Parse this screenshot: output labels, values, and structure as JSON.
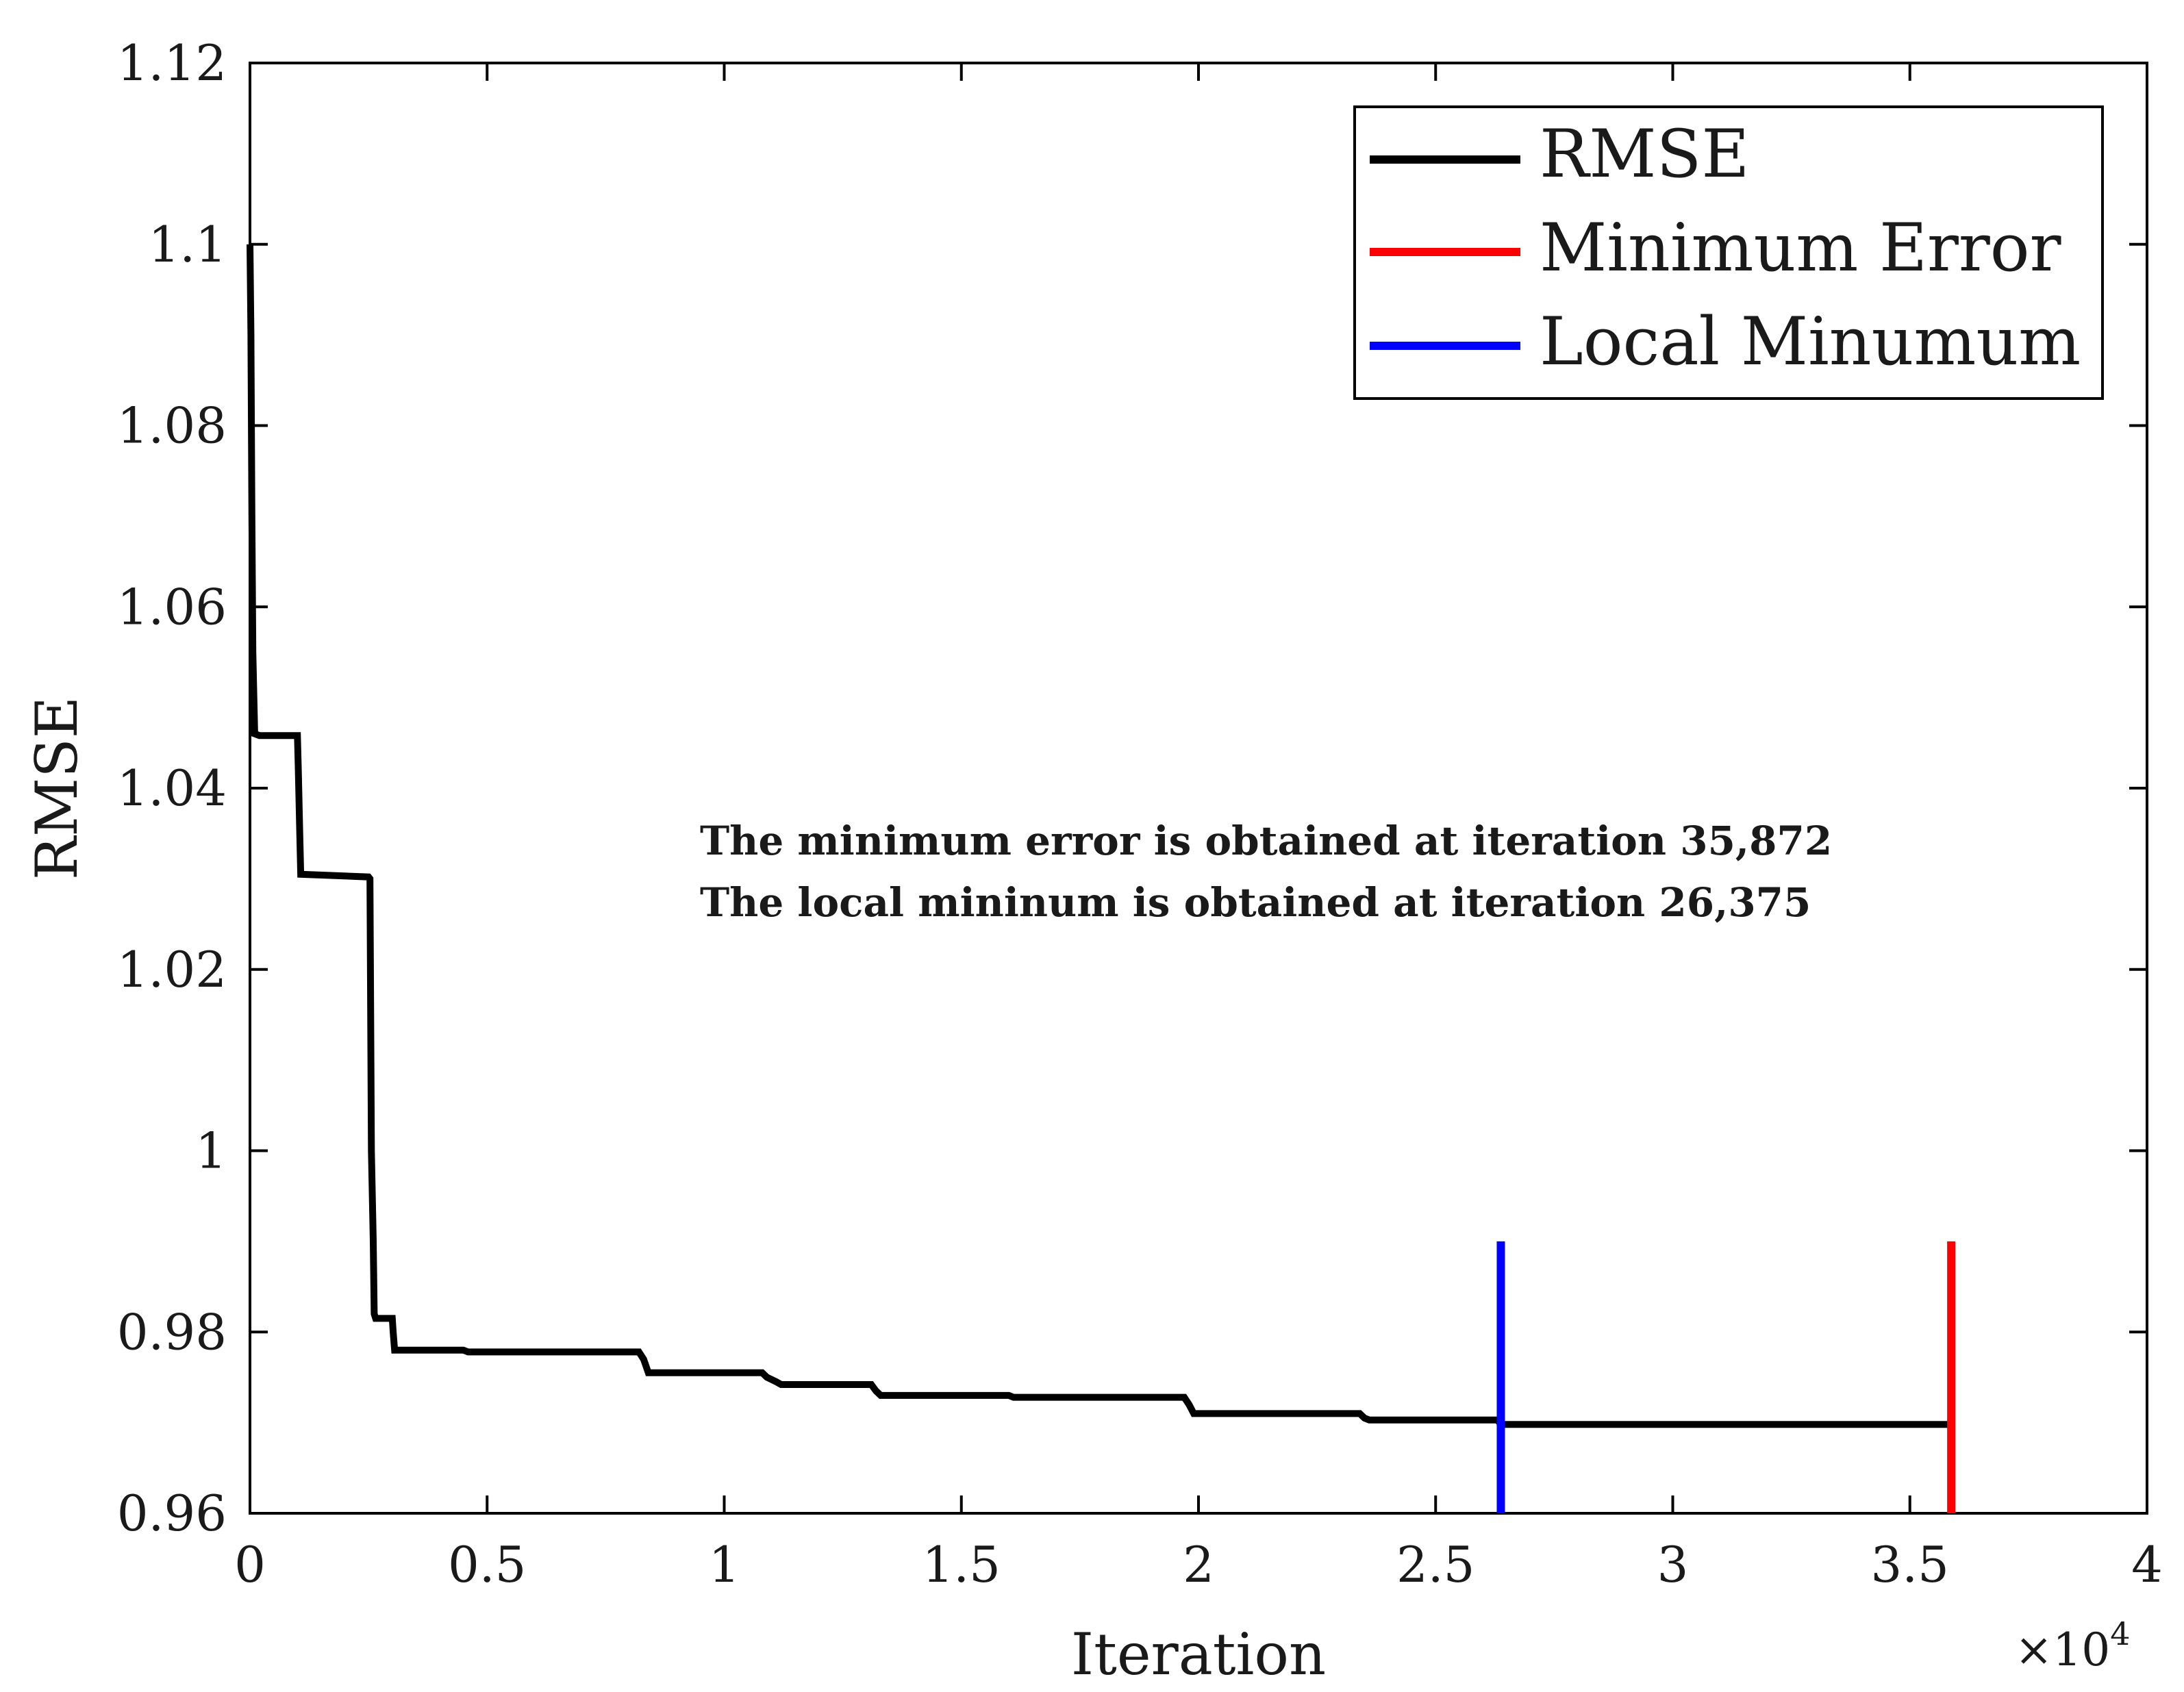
{
  "chart_data": {
    "type": "line",
    "xlabel": "Iteration",
    "ylabel": "RMSE",
    "x_exponent_label": "×10",
    "x_exponent_power": "4",
    "xlim": [
      0,
      4
    ],
    "ylim": [
      0.96,
      1.12
    ],
    "x_ticks": [
      0,
      0.5,
      1,
      1.5,
      2,
      2.5,
      3,
      3.5,
      4
    ],
    "x_tick_labels": [
      "0",
      "0.5",
      "1",
      "1.5",
      "2",
      "2.5",
      "3",
      "3.5",
      "4"
    ],
    "y_ticks": [
      0.96,
      0.98,
      1.0,
      1.02,
      1.04,
      1.06,
      1.08,
      1.1,
      1.12
    ],
    "y_tick_labels": [
      "0.96",
      "0.98",
      "1",
      "1.02",
      "1.04",
      "1.06",
      "1.08",
      "1.1",
      "1.12"
    ],
    "series": [
      {
        "name": "RMSE",
        "color": "#000000",
        "x": [
          0,
          0.002,
          0.004,
          0.006,
          0.01,
          0.02,
          0.05,
          0.1,
          0.102,
          0.105,
          0.107,
          0.25,
          0.253,
          0.256,
          0.26,
          0.262,
          0.265,
          0.3,
          0.302,
          0.305,
          0.32,
          0.45,
          0.46,
          0.82,
          0.83,
          0.84,
          1.08,
          1.09,
          1.11,
          1.12,
          1.31,
          1.32,
          1.33,
          1.6,
          1.61,
          1.97,
          1.98,
          1.99,
          2.34,
          2.35,
          2.36,
          2.63,
          2.6375,
          3.5872
        ],
        "y": [
          1.1,
          1.09,
          1.07,
          1.055,
          1.046,
          1.0458,
          1.0458,
          1.0458,
          1.042,
          1.035,
          1.0305,
          1.0302,
          1.03,
          1.0,
          0.99,
          0.982,
          0.9815,
          0.9815,
          0.98,
          0.978,
          0.978,
          0.978,
          0.9778,
          0.9778,
          0.977,
          0.9755,
          0.9755,
          0.975,
          0.9745,
          0.9742,
          0.9742,
          0.9735,
          0.973,
          0.973,
          0.9728,
          0.9728,
          0.972,
          0.971,
          0.971,
          0.9705,
          0.9703,
          0.9703,
          0.9698,
          0.9698
        ]
      }
    ],
    "vertical_lines": [
      {
        "name": "Minimum Error",
        "x": 3.5872,
        "y_range": [
          0.96,
          0.99
        ],
        "color": "#ff0000"
      },
      {
        "name": "Local Minumum",
        "x": 2.6375,
        "y_range": [
          0.96,
          0.99
        ],
        "color": "#0000ff"
      }
    ],
    "legend": {
      "position": "top-right",
      "entries": [
        {
          "label": "RMSE",
          "color": "#000000"
        },
        {
          "label": "Minimum Error",
          "color": "#ff0000"
        },
        {
          "label": "Local Minumum",
          "color": "#0000ff"
        }
      ]
    },
    "annotations": [
      "The minimum error is obtained at iteration 35,872",
      "The local mininum is obtained at iteration 26,375"
    ],
    "grid": false
  }
}
